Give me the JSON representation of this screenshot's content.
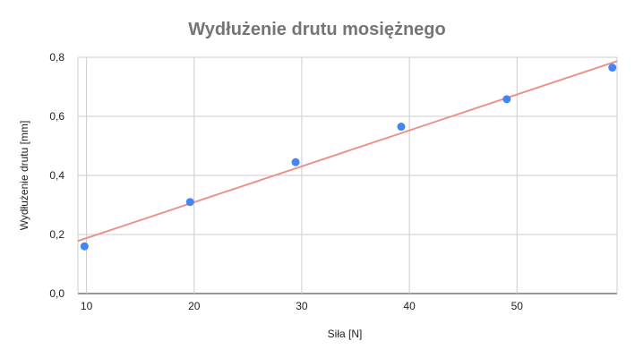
{
  "chart_data": {
    "type": "scatter",
    "title": "Wydłużenie drutu mosiężnego",
    "xlabel": "Siła [N]",
    "ylabel": "Wydłużenie drutu [mm]",
    "xlim": [
      9.2,
      59.3
    ],
    "ylim": [
      0,
      0.8
    ],
    "x_ticks": [
      10,
      20,
      30,
      40,
      50
    ],
    "x_tick_labels": [
      "10",
      "20",
      "30",
      "40",
      "50"
    ],
    "y_ticks": [
      0,
      0.2,
      0.4,
      0.6,
      0.8
    ],
    "y_tick_labels": [
      "0,0",
      "0,2",
      "0,4",
      "0,6",
      "0,8"
    ],
    "grid": true,
    "series": [
      {
        "x": [
          9.81,
          19.62,
          29.43,
          39.24,
          49.05,
          58.86
        ],
        "y": [
          0.16,
          0.31,
          0.445,
          0.565,
          0.658,
          0.765
        ],
        "color": "#4285f4"
      }
    ],
    "trendline": {
      "type": "linear",
      "x": [
        9.2,
        59.3
      ],
      "y": [
        0.178,
        0.787
      ],
      "color": "#e8948f"
    }
  }
}
